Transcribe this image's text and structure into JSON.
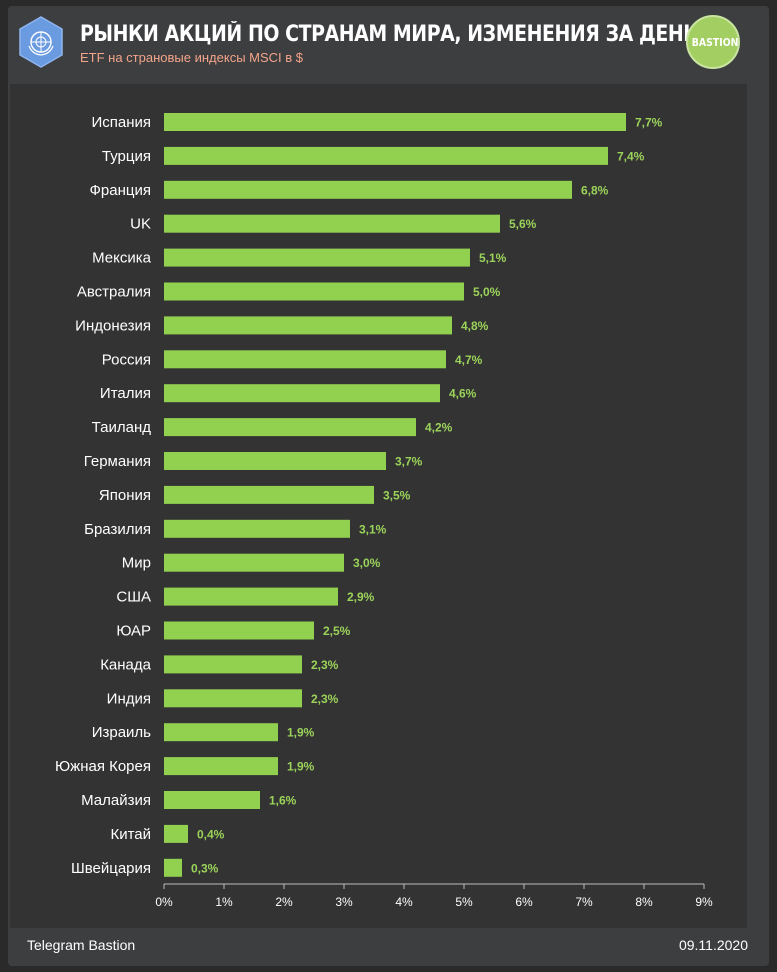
{
  "header": {
    "title": "РЫНКИ АКЦИЙ ПО СТРАНАМ МИРА, ИЗМЕНЕНИЯ ЗА ДЕНЬ",
    "subtitle": "ETF на страновые индексы MSCI  в $",
    "logo_right_text": "BASTION",
    "logo_left_icon": "un-globe-icon"
  },
  "footer": {
    "source": "Telegram Bastion",
    "date": "09.11.2020"
  },
  "colors": {
    "bar": "#92d050",
    "value_label": "#9bd35a",
    "background": "#3d3e40",
    "plot_background": "#333333",
    "accent_subtitle": "#f3a48a"
  },
  "chart_data": {
    "type": "bar",
    "orientation": "horizontal",
    "categories": [
      "Испания",
      "Турция",
      "Франция",
      "UK",
      "Мексика",
      "Австралия",
      "Индонезия",
      "Россия",
      "Италия",
      "Таиланд",
      "Германия",
      "Япония",
      "Бразилия",
      "Мир",
      "США",
      "ЮАР",
      "Канада",
      "Индия",
      "Израиль",
      "Южная Корея",
      "Малайзия",
      "Китай",
      "Швейцария"
    ],
    "values": [
      7.7,
      7.4,
      6.8,
      5.6,
      5.1,
      5.0,
      4.8,
      4.7,
      4.6,
      4.2,
      3.7,
      3.5,
      3.1,
      3.0,
      2.9,
      2.5,
      2.3,
      2.3,
      1.9,
      1.9,
      1.6,
      0.4,
      0.3
    ],
    "value_labels": [
      "7,7%",
      "7,4%",
      "6,8%",
      "5,6%",
      "5,1%",
      "5,0%",
      "4,8%",
      "4,7%",
      "4,6%",
      "4,2%",
      "3,7%",
      "3,5%",
      "3,1%",
      "3,0%",
      "2,9%",
      "2,5%",
      "2,3%",
      "2,3%",
      "1,9%",
      "1,9%",
      "1,6%",
      "0,4%",
      "0,3%"
    ],
    "x_ticks": [
      "0%",
      "1%",
      "2%",
      "3%",
      "4%",
      "5%",
      "6%",
      "7%",
      "8%",
      "9%"
    ],
    "xlim": [
      0,
      9
    ],
    "grid": false,
    "legend": "none"
  }
}
